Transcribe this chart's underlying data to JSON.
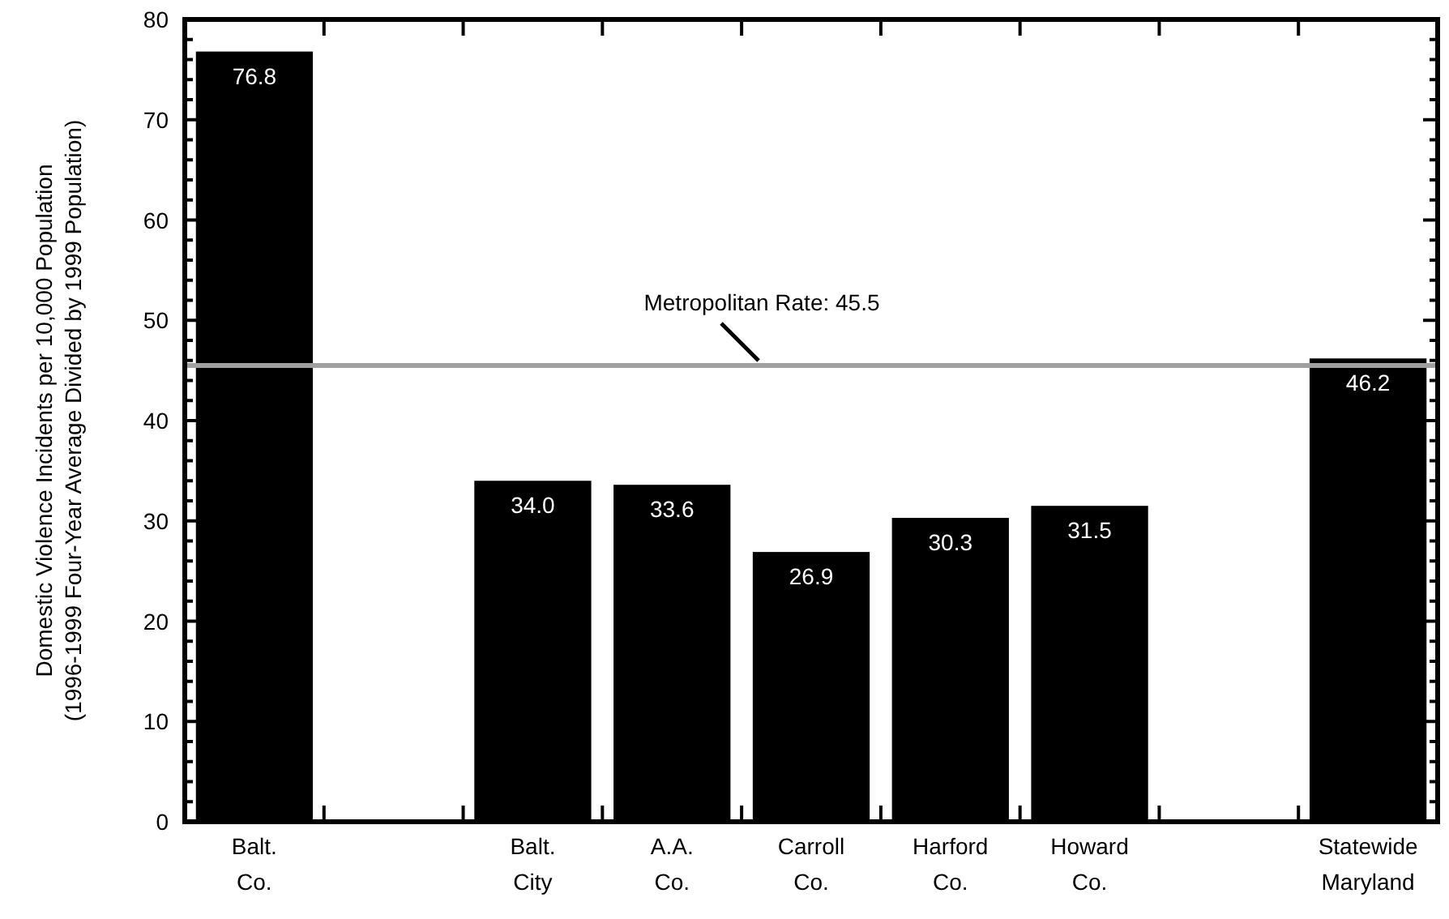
{
  "chart_data": {
    "type": "bar",
    "categories": [
      "Balt.\nCo.",
      null,
      "Balt.\nCity",
      "A.A.\nCo.",
      "Carroll\nCo.",
      "Harford\nCo.",
      "Howard\nCo.",
      null,
      "Statewide\nMaryland"
    ],
    "values": [
      76.8,
      null,
      34.0,
      33.6,
      26.9,
      30.3,
      31.5,
      null,
      46.2
    ],
    "value_labels": [
      "76.8",
      null,
      "34.0",
      "33.6",
      "26.9",
      "30.3",
      "31.5",
      null,
      "46.2"
    ],
    "color": "#000000",
    "ylabel": "Domestic Violence Incidents per 10,000 Population\n(1996-1999 Four-Year Average Divided by 1999 Population)",
    "ylim": [
      0,
      80
    ],
    "yticks": [
      0,
      {
        "value": 2,
        "label": null
      },
      {
        "value": 4,
        "label": null
      },
      {
        "value": 6,
        "label": null
      },
      {
        "value": 8,
        "label": null
      },
      10,
      {
        "value": 12,
        "label": null
      },
      {
        "value": 14,
        "label": null
      },
      {
        "value": 16,
        "label": null
      },
      {
        "value": 18,
        "label": null
      },
      20,
      {
        "value": 22,
        "label": null
      },
      {
        "value": 24,
        "label": null
      },
      {
        "value": 26,
        "label": null
      },
      {
        "value": 28,
        "label": null
      },
      30,
      {
        "value": 32,
        "label": null
      },
      {
        "value": 34,
        "label": null
      },
      {
        "value": 36,
        "label": null
      },
      {
        "value": 38,
        "label": null
      },
      40,
      {
        "value": 42,
        "label": null
      },
      {
        "value": 44,
        "label": null
      },
      {
        "value": 46,
        "label": null
      },
      {
        "value": 48,
        "label": null
      },
      50,
      {
        "value": 52,
        "label": null
      },
      {
        "value": 54,
        "label": null
      },
      {
        "value": 56,
        "label": null
      },
      {
        "value": 58,
        "label": null
      },
      60,
      {
        "value": 62,
        "label": null
      },
      {
        "value": 64,
        "label": null
      },
      {
        "value": 66,
        "label": null
      },
      {
        "value": 68,
        "label": null
      },
      70,
      {
        "value": 72,
        "label": null
      },
      {
        "value": 74,
        "label": null
      },
      {
        "value": 76,
        "label": null
      },
      {
        "value": 78,
        "label": null
      },
      80
    ],
    "ref_lines": [
      {
        "axis": "y",
        "value": 45.5,
        "label": "Metropolitan Rate: 45.5",
        "color": "#a0a0a0"
      }
    ],
    "grid": false
  }
}
